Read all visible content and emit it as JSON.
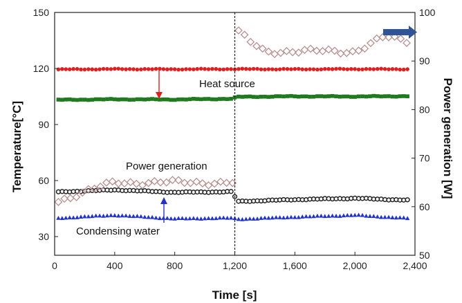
{
  "chart_data": {
    "type": "scatter",
    "xlabel": "Time [s]",
    "ylabel": "Temperature[°C]",
    "y2label": "Power generation [W]",
    "xlim": [
      0,
      2400
    ],
    "ylim": [
      20,
      150
    ],
    "y2lim": [
      50,
      100
    ],
    "x_ticks": [
      0,
      400,
      800,
      1200,
      1600,
      2000,
      2400
    ],
    "x_tick_labels": [
      "0",
      "400",
      "800",
      "1,200",
      "1,600",
      "2,000",
      "2,400"
    ],
    "y_ticks": [
      30,
      60,
      90,
      120,
      150
    ],
    "y_tick_labels": [
      "30",
      "60",
      "90",
      "120",
      "150"
    ],
    "y2_ticks": [
      50,
      60,
      70,
      80,
      90,
      100
    ],
    "y2_tick_labels": [
      "50",
      "60",
      "70",
      "80",
      "90",
      "100"
    ],
    "grid": false,
    "vline_x": 1200,
    "annotations": {
      "heat_source": "Heat source",
      "power_generation": "Power generation",
      "condensing_water": "Condensing water"
    },
    "series": [
      {
        "marker": "circle",
        "color": "#e02020",
        "axis": "left",
        "x": [
          0,
          400,
          800,
          1200,
          1600,
          2000,
          2350
        ],
        "y": [
          119.5,
          119.7,
          119.6,
          119.7,
          119.6,
          119.7,
          119.6
        ]
      },
      {
        "marker": "square",
        "color": "#1f7a1f",
        "axis": "left",
        "x": [
          0,
          400,
          800,
          1000,
          1190,
          1210,
          1600,
          2000,
          2350
        ],
        "y": [
          103.2,
          103.5,
          103.4,
          103.6,
          103.8,
          104.8,
          105.1,
          105.0,
          105.2
        ]
      },
      {
        "marker": "circle-open",
        "color": "#222222",
        "axis": "left",
        "x": [
          0,
          400,
          800,
          1190,
          1210,
          1600,
          2000,
          2350
        ],
        "y": [
          53.8,
          55.0,
          53.7,
          54.0,
          48.8,
          49.8,
          50.5,
          49.5
        ]
      },
      {
        "marker": "triangle",
        "color": "#2233cc",
        "axis": "left",
        "x": [
          0,
          400,
          800,
          1190,
          1210,
          1600,
          2000,
          2350
        ],
        "y": [
          39.8,
          41.5,
          39.6,
          40.0,
          39.3,
          40.5,
          41.5,
          39.8
        ]
      },
      {
        "marker": "diamond-open",
        "color": "#b89090",
        "axis": "right",
        "x": [
          0,
          200,
          400,
          800,
          1190,
          1220,
          1300,
          1400,
          1600,
          2000,
          2200,
          2350
        ],
        "y": [
          61,
          63,
          65,
          65,
          65,
          96,
          94,
          92,
          92,
          92,
          95,
          94
        ]
      }
    ]
  }
}
